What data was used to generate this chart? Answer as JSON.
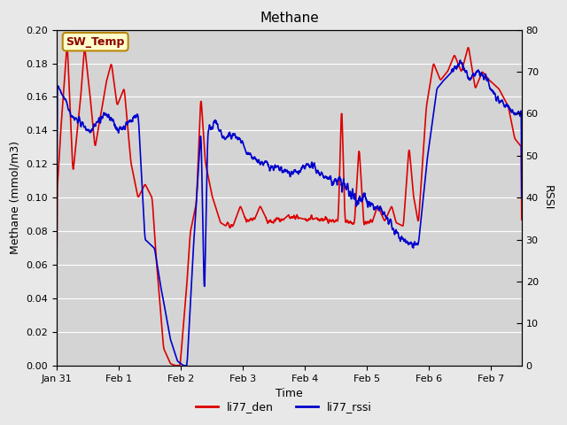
{
  "title": "Methane",
  "ylabel_left": "Methane (mmol/m3)",
  "ylabel_right": "RSSI",
  "xlabel": "Time",
  "ylim_left": [
    0.0,
    0.2
  ],
  "ylim_right": [
    0,
    80
  ],
  "yticks_left": [
    0.0,
    0.02,
    0.04,
    0.06,
    0.08,
    0.1,
    0.12,
    0.14,
    0.16,
    0.18,
    0.2
  ],
  "yticks_right": [
    0,
    10,
    20,
    30,
    40,
    50,
    60,
    70,
    80
  ],
  "xtick_labels": [
    "Jan 31",
    "Feb 1",
    "Feb 2",
    "Feb 3",
    "Feb 4",
    "Feb 5",
    "Feb 6",
    "Feb 7"
  ],
  "line1_color": "#dd0000",
  "line2_color": "#0000cc",
  "line1_label": "li77_den",
  "line2_label": "li77_rssi",
  "line_width": 1.2,
  "fig_bg_color": "#e8e8e8",
  "plot_bg_color": "#d4d4d4",
  "annotation_text": "SW_Temp",
  "annotation_bg": "#ffffcc",
  "annotation_border": "#b8860b",
  "annotation_text_color": "#8b0000"
}
